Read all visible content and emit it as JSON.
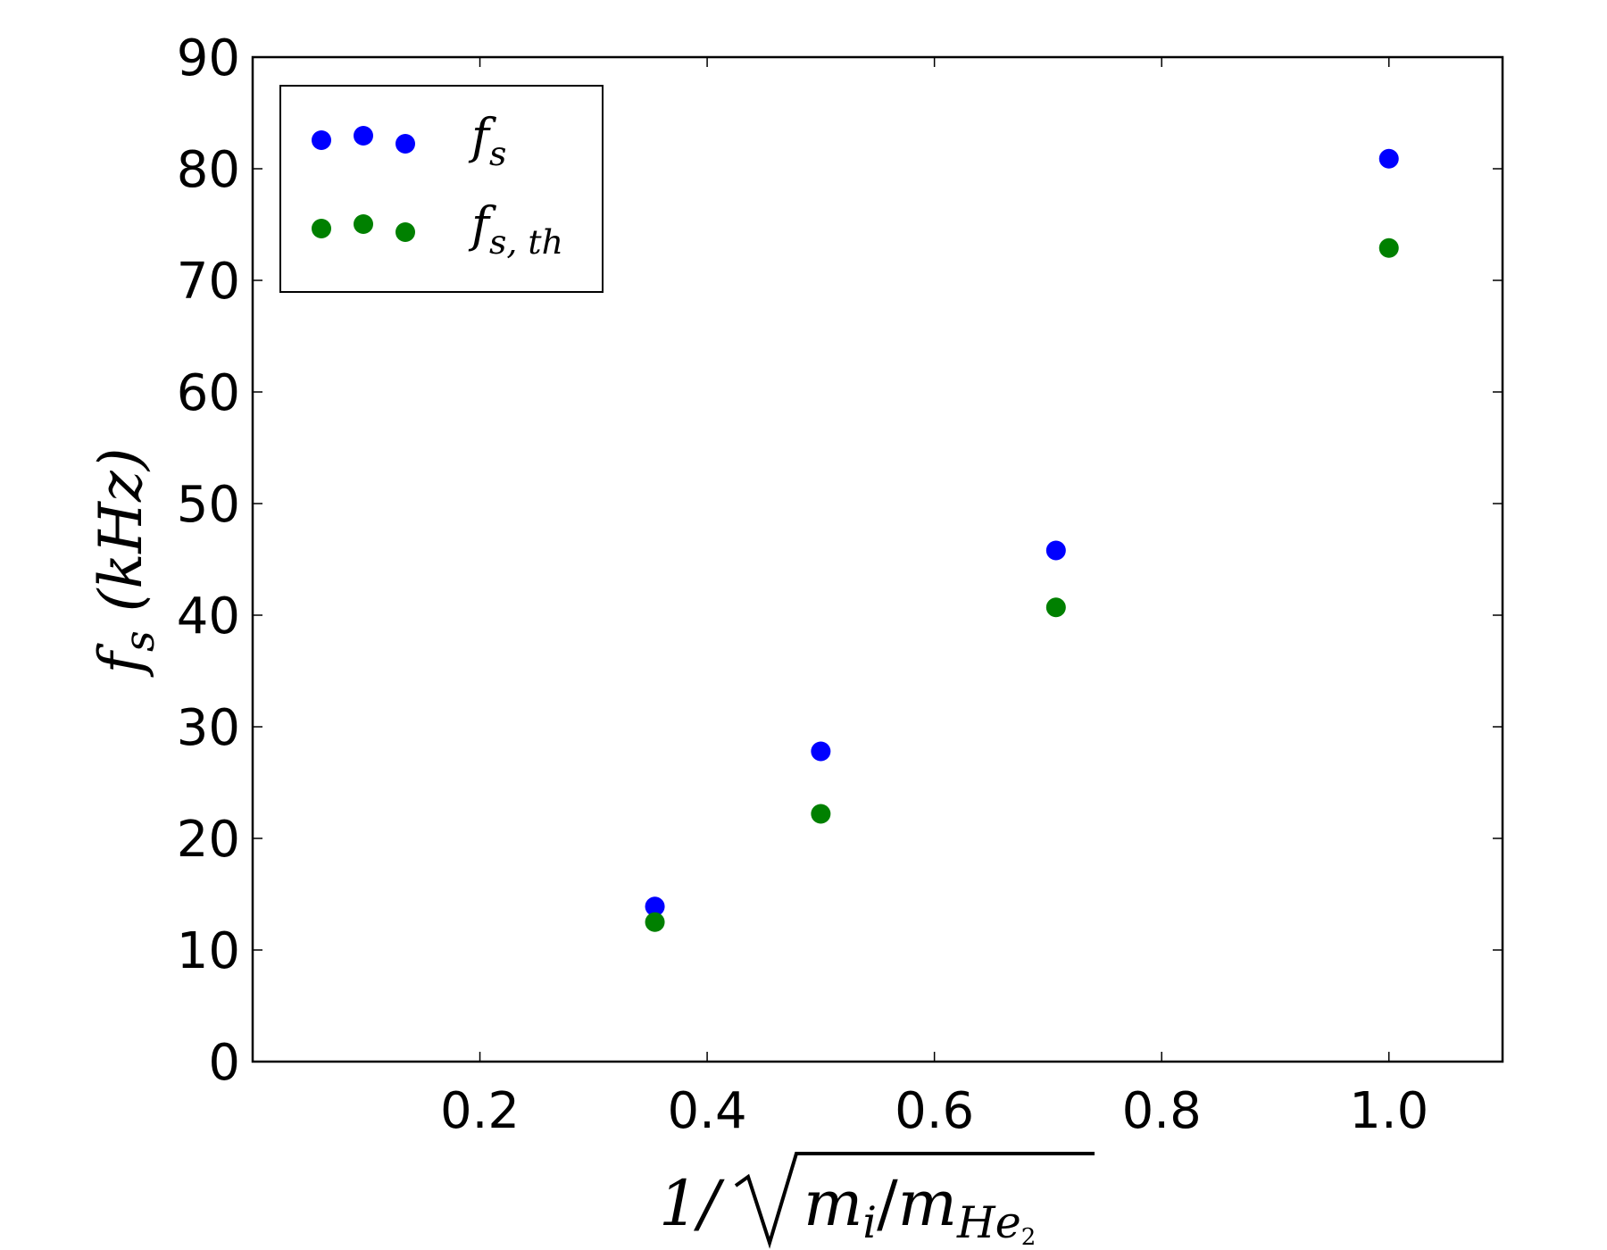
{
  "chart_data": {
    "type": "scatter",
    "title": "",
    "x_axis": {
      "label": "1/√m_i/m_He2",
      "label_base": "1/",
      "label_radical_left": "m",
      "label_radical_left_sub": "i",
      "label_slash": "/",
      "label_radical_right": "m",
      "label_radical_right_sub": "He",
      "label_radical_right_subsub": "2",
      "range": [
        0.0,
        1.1
      ],
      "ticks": [
        {
          "value": 0.2,
          "label": "0.2"
        },
        {
          "value": 0.4,
          "label": "0.4"
        },
        {
          "value": 0.6,
          "label": "0.6"
        },
        {
          "value": 0.8,
          "label": "0.8"
        },
        {
          "value": 1.0,
          "label": "1.0"
        }
      ]
    },
    "y_axis": {
      "label": "f_s (kHz)",
      "label_symbol": "f",
      "label_sub": "s",
      "label_unit": "(kHz)",
      "range": [
        0,
        90
      ],
      "ticks": [
        {
          "value": 0,
          "label": "0"
        },
        {
          "value": 10,
          "label": "10"
        },
        {
          "value": 20,
          "label": "20"
        },
        {
          "value": 30,
          "label": "30"
        },
        {
          "value": 40,
          "label": "40"
        },
        {
          "value": 50,
          "label": "50"
        },
        {
          "value": 60,
          "label": "60"
        },
        {
          "value": 70,
          "label": "70"
        },
        {
          "value": 80,
          "label": "80"
        },
        {
          "value": 90,
          "label": "90"
        }
      ]
    },
    "grid": false,
    "legend_position": "top-left",
    "series": [
      {
        "name": "f_s",
        "legend_symbol": "f",
        "legend_sub": "s",
        "color": "#0000ff",
        "points": [
          {
            "x": 0.354,
            "y": 13.9
          },
          {
            "x": 0.5,
            "y": 27.8
          },
          {
            "x": 0.707,
            "y": 45.8
          },
          {
            "x": 1.0,
            "y": 80.9
          }
        ]
      },
      {
        "name": "f_s,th",
        "legend_symbol": "f",
        "legend_sub": "s, th",
        "color": "#008000",
        "points": [
          {
            "x": 0.354,
            "y": 12.5
          },
          {
            "x": 0.5,
            "y": 22.2
          },
          {
            "x": 0.707,
            "y": 40.7
          },
          {
            "x": 1.0,
            "y": 72.9
          }
        ]
      }
    ]
  }
}
